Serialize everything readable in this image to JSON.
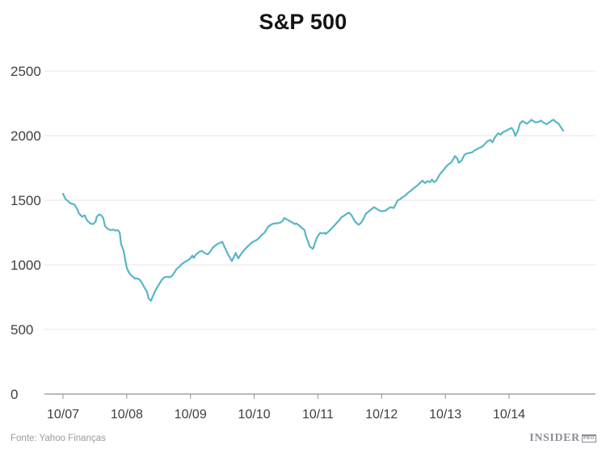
{
  "source": {
    "text": "Fonte: Yahoo Finanças"
  },
  "logo": {
    "brand": "INSIDER",
    "suffix": "PRO"
  },
  "chart_data": {
    "type": "line",
    "title": "S&P 500",
    "series_name": "S&P 500",
    "xlabel": "",
    "ylabel": "",
    "grid": "horizontal",
    "legend": "none",
    "line_color": "#58b6c6",
    "grid_color": "#e4e4e4",
    "axis_color": "#8f8f8f",
    "label_color": "#3f3f3f",
    "ylim": [
      0,
      2500
    ],
    "y_ticks": [
      0,
      500,
      1000,
      1500,
      2000,
      2500
    ],
    "x_tick_labels": [
      "10/07",
      "10/08",
      "10/09",
      "10/10",
      "10/11",
      "10/12",
      "10/13",
      "10/14"
    ],
    "x_tick_positions": [
      2007.75,
      2008.75,
      2009.75,
      2010.75,
      2011.75,
      2012.75,
      2013.75,
      2014.75
    ],
    "points": [
      [
        2007.75,
        1550
      ],
      [
        2007.79,
        1508
      ],
      [
        2007.83,
        1494
      ],
      [
        2007.86,
        1477
      ],
      [
        2007.93,
        1467
      ],
      [
        2007.97,
        1435
      ],
      [
        2008.0,
        1398
      ],
      [
        2008.05,
        1373
      ],
      [
        2008.09,
        1383
      ],
      [
        2008.13,
        1342
      ],
      [
        2008.18,
        1320
      ],
      [
        2008.22,
        1315
      ],
      [
        2008.26,
        1333
      ],
      [
        2008.28,
        1373
      ],
      [
        2008.32,
        1390
      ],
      [
        2008.35,
        1383
      ],
      [
        2008.38,
        1363
      ],
      [
        2008.41,
        1300
      ],
      [
        2008.45,
        1279
      ],
      [
        2008.5,
        1269
      ],
      [
        2008.54,
        1273
      ],
      [
        2008.57,
        1265
      ],
      [
        2008.61,
        1269
      ],
      [
        2008.64,
        1248
      ],
      [
        2008.66,
        1164
      ],
      [
        2008.7,
        1110
      ],
      [
        2008.73,
        1029
      ],
      [
        2008.75,
        977
      ],
      [
        2008.79,
        935
      ],
      [
        2008.83,
        914
      ],
      [
        2008.88,
        894
      ],
      [
        2008.92,
        894
      ],
      [
        2008.95,
        887
      ],
      [
        2008.98,
        867
      ],
      [
        2009.02,
        831
      ],
      [
        2009.07,
        789
      ],
      [
        2009.09,
        742
      ],
      [
        2009.13,
        721
      ],
      [
        2009.17,
        769
      ],
      [
        2009.21,
        810
      ],
      [
        2009.26,
        852
      ],
      [
        2009.3,
        883
      ],
      [
        2009.34,
        904
      ],
      [
        2009.39,
        908
      ],
      [
        2009.42,
        904
      ],
      [
        2009.46,
        914
      ],
      [
        2009.49,
        935
      ],
      [
        2009.53,
        967
      ],
      [
        2009.58,
        988
      ],
      [
        2009.61,
        1004
      ],
      [
        2009.65,
        1019
      ],
      [
        2009.7,
        1033
      ],
      [
        2009.74,
        1046
      ],
      [
        2009.78,
        1071
      ],
      [
        2009.8,
        1054
      ],
      [
        2009.84,
        1081
      ],
      [
        2009.89,
        1102
      ],
      [
        2009.93,
        1108
      ],
      [
        2009.97,
        1092
      ],
      [
        2010.02,
        1081
      ],
      [
        2010.06,
        1102
      ],
      [
        2010.1,
        1133
      ],
      [
        2010.15,
        1154
      ],
      [
        2010.19,
        1165
      ],
      [
        2010.22,
        1171
      ],
      [
        2010.25,
        1179
      ],
      [
        2010.29,
        1133
      ],
      [
        2010.34,
        1081
      ],
      [
        2010.4,
        1029
      ],
      [
        2010.44,
        1071
      ],
      [
        2010.46,
        1092
      ],
      [
        2010.48,
        1071
      ],
      [
        2010.5,
        1050
      ],
      [
        2010.54,
        1081
      ],
      [
        2010.59,
        1113
      ],
      [
        2010.63,
        1133
      ],
      [
        2010.67,
        1154
      ],
      [
        2010.72,
        1175
      ],
      [
        2010.76,
        1185
      ],
      [
        2010.79,
        1192
      ],
      [
        2010.82,
        1206
      ],
      [
        2010.86,
        1227
      ],
      [
        2010.91,
        1248
      ],
      [
        2010.95,
        1279
      ],
      [
        2010.98,
        1300
      ],
      [
        2011.03,
        1315
      ],
      [
        2011.07,
        1321
      ],
      [
        2011.11,
        1321
      ],
      [
        2011.16,
        1327
      ],
      [
        2011.2,
        1342
      ],
      [
        2011.22,
        1363
      ],
      [
        2011.26,
        1352
      ],
      [
        2011.3,
        1342
      ],
      [
        2011.35,
        1327
      ],
      [
        2011.39,
        1315
      ],
      [
        2011.41,
        1321
      ],
      [
        2011.45,
        1306
      ],
      [
        2011.49,
        1290
      ],
      [
        2011.54,
        1269
      ],
      [
        2011.56,
        1227
      ],
      [
        2011.6,
        1175
      ],
      [
        2011.62,
        1144
      ],
      [
        2011.67,
        1123
      ],
      [
        2011.68,
        1133
      ],
      [
        2011.73,
        1206
      ],
      [
        2011.77,
        1238
      ],
      [
        2011.79,
        1248
      ],
      [
        2011.81,
        1244
      ],
      [
        2011.86,
        1248
      ],
      [
        2011.87,
        1238
      ],
      [
        2011.92,
        1258
      ],
      [
        2011.96,
        1279
      ],
      [
        2012.0,
        1300
      ],
      [
        2012.05,
        1327
      ],
      [
        2012.09,
        1348
      ],
      [
        2012.12,
        1369
      ],
      [
        2012.17,
        1383
      ],
      [
        2012.21,
        1398
      ],
      [
        2012.24,
        1404
      ],
      [
        2012.28,
        1383
      ],
      [
        2012.3,
        1363
      ],
      [
        2012.34,
        1331
      ],
      [
        2012.39,
        1310
      ],
      [
        2012.43,
        1327
      ],
      [
        2012.47,
        1360
      ],
      [
        2012.5,
        1394
      ],
      [
        2012.55,
        1415
      ],
      [
        2012.59,
        1430
      ],
      [
        2012.63,
        1446
      ],
      [
        2012.68,
        1431
      ],
      [
        2012.72,
        1419
      ],
      [
        2012.76,
        1415
      ],
      [
        2012.81,
        1419
      ],
      [
        2012.85,
        1435
      ],
      [
        2012.89,
        1446
      ],
      [
        2012.94,
        1440
      ],
      [
        2012.97,
        1467
      ],
      [
        2013.0,
        1498
      ],
      [
        2013.04,
        1508
      ],
      [
        2013.08,
        1523
      ],
      [
        2013.13,
        1540
      ],
      [
        2013.16,
        1556
      ],
      [
        2013.2,
        1571
      ],
      [
        2013.25,
        1592
      ],
      [
        2013.29,
        1606
      ],
      [
        2013.33,
        1623
      ],
      [
        2013.35,
        1633
      ],
      [
        2013.39,
        1652
      ],
      [
        2013.43,
        1633
      ],
      [
        2013.47,
        1648
      ],
      [
        2013.51,
        1640
      ],
      [
        2013.54,
        1660
      ],
      [
        2013.57,
        1640
      ],
      [
        2013.61,
        1652
      ],
      [
        2013.65,
        1690
      ],
      [
        2013.68,
        1712
      ],
      [
        2013.72,
        1733
      ],
      [
        2013.76,
        1758
      ],
      [
        2013.8,
        1779
      ],
      [
        2013.84,
        1790
      ],
      [
        2013.87,
        1815
      ],
      [
        2013.9,
        1842
      ],
      [
        2013.94,
        1821
      ],
      [
        2013.96,
        1790
      ],
      [
        2014.01,
        1810
      ],
      [
        2014.05,
        1852
      ],
      [
        2014.09,
        1863
      ],
      [
        2014.14,
        1867
      ],
      [
        2014.18,
        1873
      ],
      [
        2014.2,
        1883
      ],
      [
        2014.24,
        1894
      ],
      [
        2014.28,
        1904
      ],
      [
        2014.33,
        1915
      ],
      [
        2014.37,
        1935
      ],
      [
        2014.41,
        1956
      ],
      [
        2014.46,
        1967
      ],
      [
        2014.49,
        1948
      ],
      [
        2014.53,
        1988
      ],
      [
        2014.58,
        2019
      ],
      [
        2014.62,
        2008
      ],
      [
        2014.66,
        2029
      ],
      [
        2014.71,
        2039
      ],
      [
        2014.75,
        2050
      ],
      [
        2014.79,
        2060
      ],
      [
        2014.82,
        2039
      ],
      [
        2014.85,
        1998
      ],
      [
        2014.89,
        2039
      ],
      [
        2014.92,
        2092
      ],
      [
        2014.96,
        2113
      ],
      [
        2015.0,
        2102
      ],
      [
        2015.03,
        2092
      ],
      [
        2015.07,
        2108
      ],
      [
        2015.1,
        2123
      ],
      [
        2015.13,
        2113
      ],
      [
        2015.17,
        2102
      ],
      [
        2015.22,
        2108
      ],
      [
        2015.25,
        2117
      ],
      [
        2015.29,
        2102
      ],
      [
        2015.34,
        2088
      ],
      [
        2015.38,
        2102
      ],
      [
        2015.42,
        2117
      ],
      [
        2015.45,
        2123
      ],
      [
        2015.48,
        2108
      ],
      [
        2015.53,
        2092
      ],
      [
        2015.57,
        2060
      ],
      [
        2015.6,
        2039
      ]
    ]
  }
}
